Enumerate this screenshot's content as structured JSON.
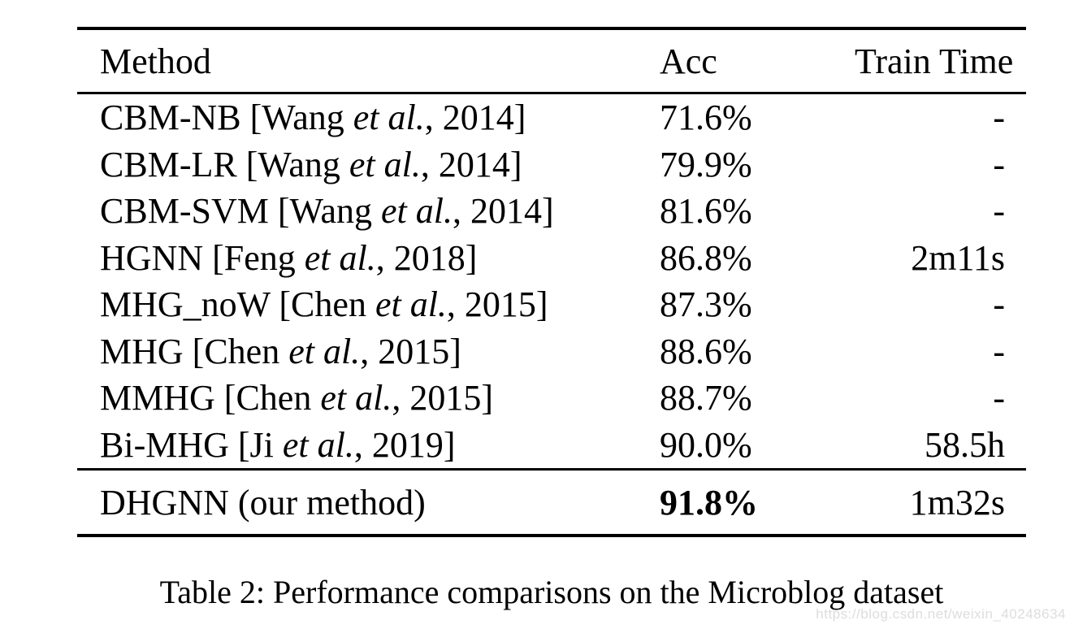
{
  "table": {
    "columns": [
      "Method",
      "Acc",
      "Train Time"
    ],
    "rows": [
      {
        "pre": "CBM-NB [Wang ",
        "etal": "et al.",
        "post": ", 2014]",
        "acc": "71.6%",
        "time": "-"
      },
      {
        "pre": "CBM-LR [Wang ",
        "etal": "et al.",
        "post": ", 2014]",
        "acc": "79.9%",
        "time": "-"
      },
      {
        "pre": "CBM-SVM [Wang ",
        "etal": "et al.",
        "post": ", 2014]",
        "acc": "81.6%",
        "time": "-"
      },
      {
        "pre": "HGNN [Feng ",
        "etal": "et al.",
        "post": ", 2018]",
        "acc": "86.8%",
        "time": "2m11s"
      },
      {
        "pre": "MHG_noW [Chen ",
        "etal": "et al.",
        "post": ", 2015]",
        "acc": "87.3%",
        "time": "-"
      },
      {
        "pre": "MHG [Chen ",
        "etal": "et al.",
        "post": ", 2015]",
        "acc": "88.6%",
        "time": "-"
      },
      {
        "pre": "MMHG [Chen ",
        "etal": "et al.",
        "post": ", 2015]",
        "acc": "88.7%",
        "time": "-"
      },
      {
        "pre": "Bi-MHG [Ji ",
        "etal": "et al.",
        "post": ", 2019]",
        "acc": "90.0%",
        "time": "58.5h"
      }
    ],
    "highlight_row": {
      "method": "DHGNN (our method)",
      "acc": "91.8%",
      "time": "1m32s"
    }
  },
  "caption": "Table 2: Performance comparisons on the Microblog dataset",
  "watermark": "https://blog.csdn.net/weixin_40248634",
  "colors": {
    "text": "#000000",
    "rule": "#000000",
    "watermark": "#dddddd",
    "background": "#ffffff"
  }
}
